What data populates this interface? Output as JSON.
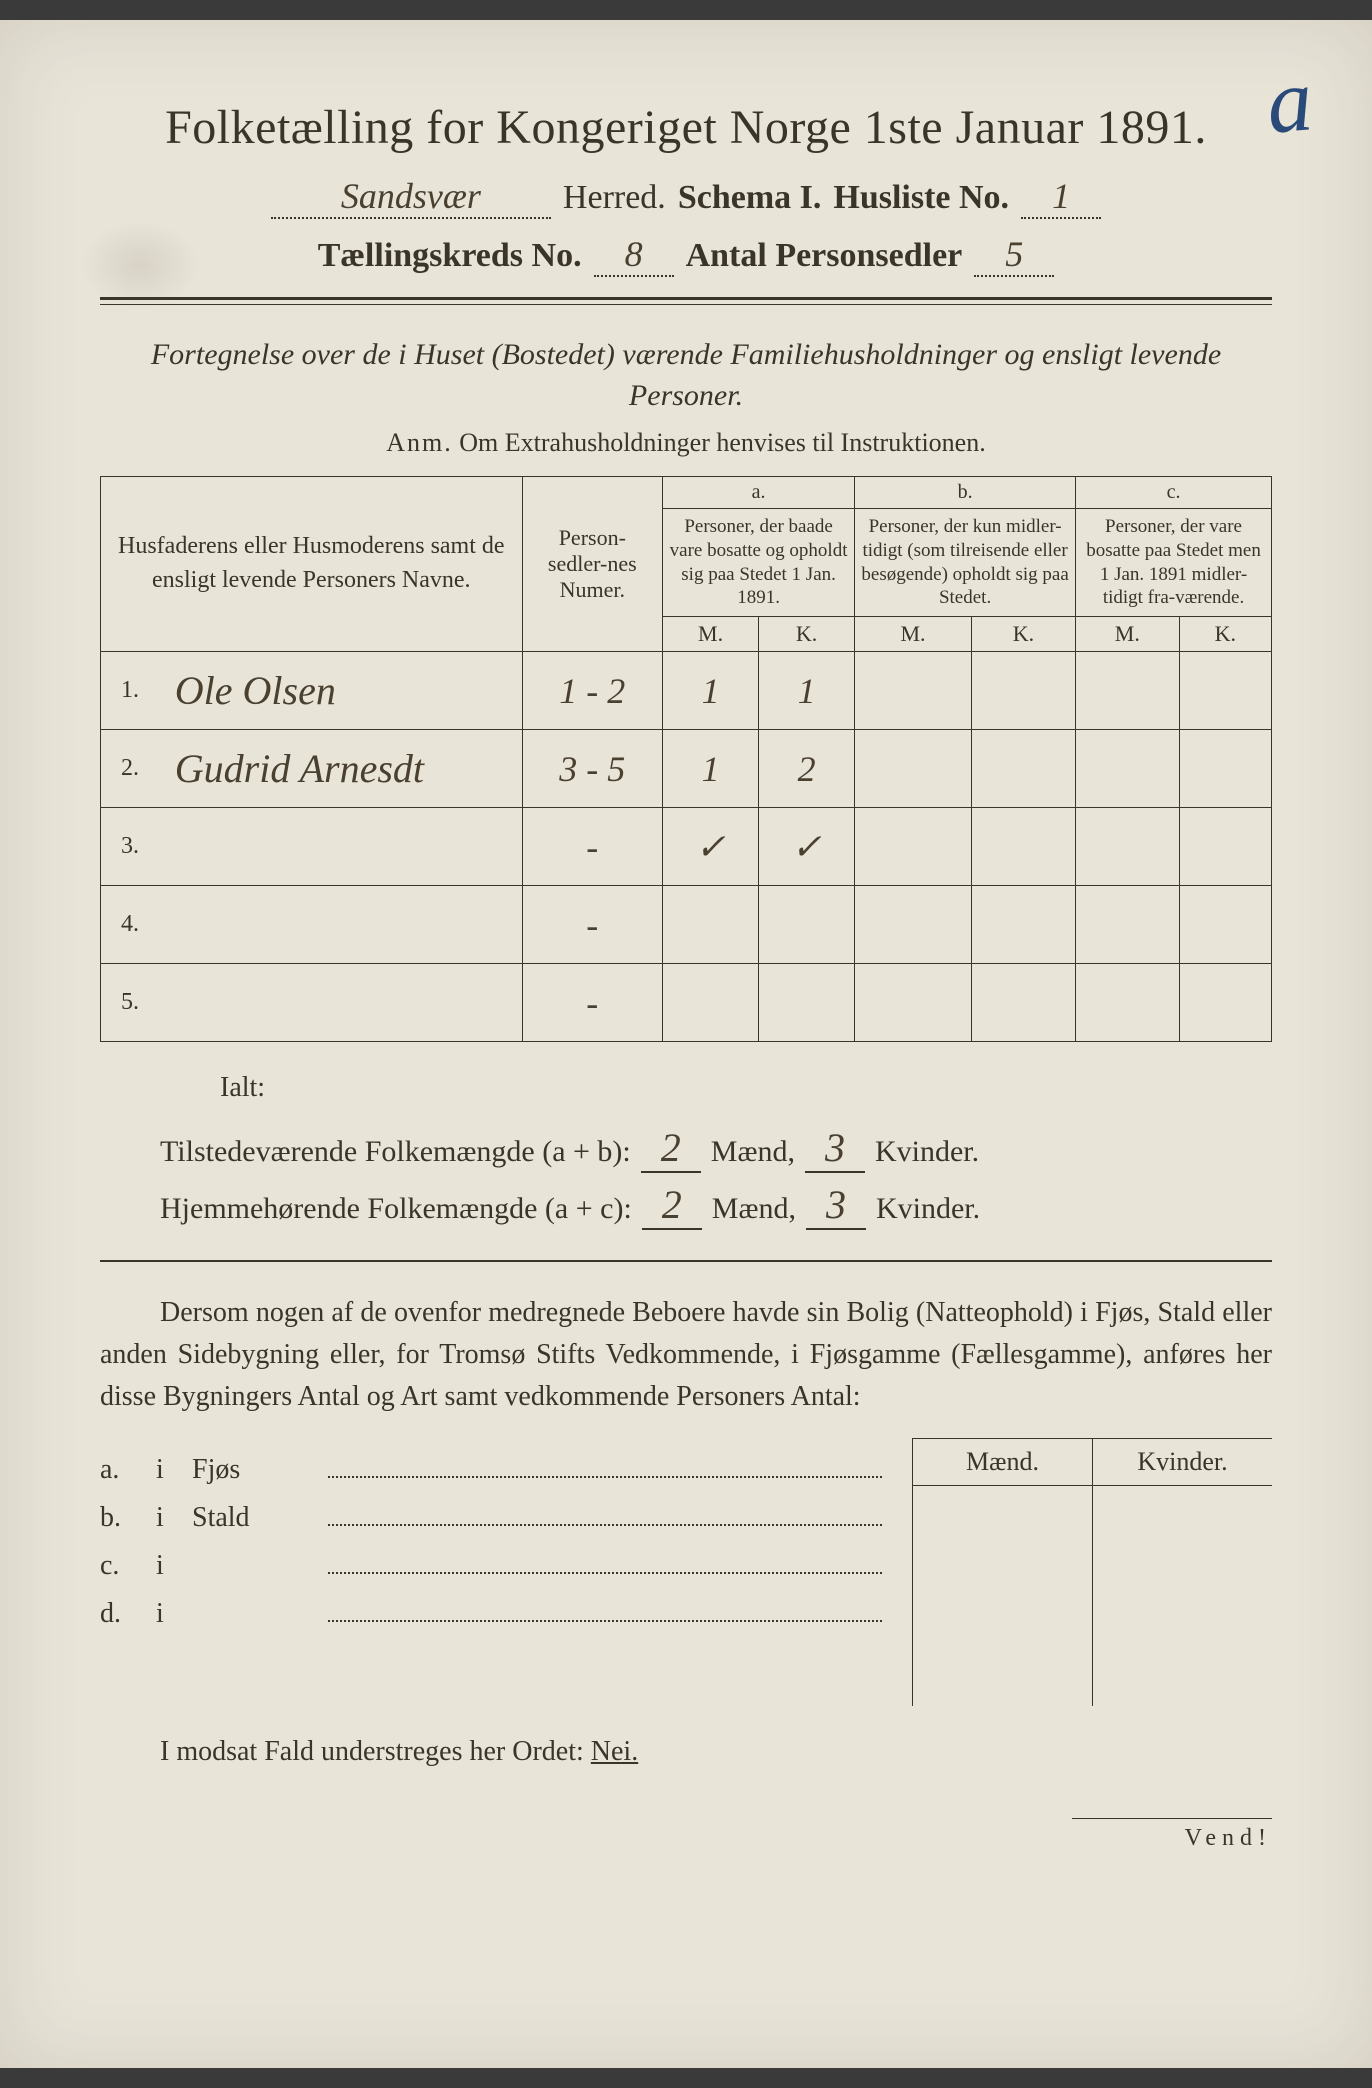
{
  "corner_mark": "a",
  "title": "Folketælling for Kongeriget Norge 1ste Januar 1891.",
  "header": {
    "herred_value": "Sandsvær",
    "herred_label": "Herred.",
    "schema_label": "Schema I.",
    "husliste_label": "Husliste No.",
    "husliste_value": "1",
    "kreds_label": "Tællingskreds No.",
    "kreds_value": "8",
    "antal_label": "Antal Personsedler",
    "antal_value": "5"
  },
  "intro": "Fortegnelse over de i Huset (Bostedet) værende Familiehusholdninger og ensligt levende Personer.",
  "anm_label": "Anm.",
  "anm_text": "Om Extrahusholdninger henvises til Instruktionen.",
  "table": {
    "col_names": "Husfaderens eller Husmoderens samt de ensligt levende Personers Navne.",
    "col_num": "Person-sedler-nes Numer.",
    "group_a_label": "a.",
    "group_a_desc": "Personer, der baade vare bosatte og opholdt sig paa Stedet 1 Jan. 1891.",
    "group_b_label": "b.",
    "group_b_desc": "Personer, der kun midler-tidigt (som tilreisende eller besøgende) opholdt sig paa Stedet.",
    "group_c_label": "c.",
    "group_c_desc": "Personer, der vare bosatte paa Stedet men 1 Jan. 1891 midler-tidigt fra-værende.",
    "m_label": "M.",
    "k_label": "K.",
    "rows": [
      {
        "n": "1.",
        "name": "Ole Olsen",
        "num": "1 - 2",
        "am": "1",
        "ak": "1",
        "bm": "",
        "bk": "",
        "cm": "",
        "ck": ""
      },
      {
        "n": "2.",
        "name": "Gudrid Arnesdt",
        "num": "3 - 5",
        "am": "1",
        "ak": "2",
        "bm": "",
        "bk": "",
        "cm": "",
        "ck": ""
      },
      {
        "n": "3.",
        "name": "",
        "num": "-",
        "am": "✓",
        "ak": "✓",
        "bm": "",
        "bk": "",
        "cm": "",
        "ck": ""
      },
      {
        "n": "4.",
        "name": "",
        "num": "-",
        "am": "",
        "ak": "",
        "bm": "",
        "bk": "",
        "cm": "",
        "ck": ""
      },
      {
        "n": "5.",
        "name": "",
        "num": "-",
        "am": "",
        "ak": "",
        "bm": "",
        "bk": "",
        "cm": "",
        "ck": ""
      }
    ]
  },
  "ialt": "Ialt:",
  "sum1": {
    "label": "Tilstedeværende Folkemængde (a + b):",
    "m": "2",
    "m_label": "Mænd,",
    "k": "3",
    "k_label": "Kvinder."
  },
  "sum2": {
    "label": "Hjemmehørende Folkemængde (a + c):",
    "m": "2",
    "m_label": "Mænd,",
    "k": "3",
    "k_label": "Kvinder."
  },
  "para": "Dersom nogen af de ovenfor medregnede Beboere havde sin Bolig (Natteophold) i Fjøs, Stald eller anden Sidebygning eller, for Tromsø Stifts Vedkommende, i Fjøsgamme (Fællesgamme), anføres her disse Bygningers Antal og Art samt vedkommende Personers Antal:",
  "mk_m": "Mænd.",
  "mk_k": "Kvinder.",
  "opts": [
    {
      "letter": "a.",
      "i": "i",
      "label": "Fjøs"
    },
    {
      "letter": "b.",
      "i": "i",
      "label": "Stald"
    },
    {
      "letter": "c.",
      "i": "i",
      "label": ""
    },
    {
      "letter": "d.",
      "i": "i",
      "label": ""
    }
  ],
  "nei_pre": "I modsat Fald understreges her Ordet:",
  "nei": "Nei.",
  "vend": "Vend!"
}
